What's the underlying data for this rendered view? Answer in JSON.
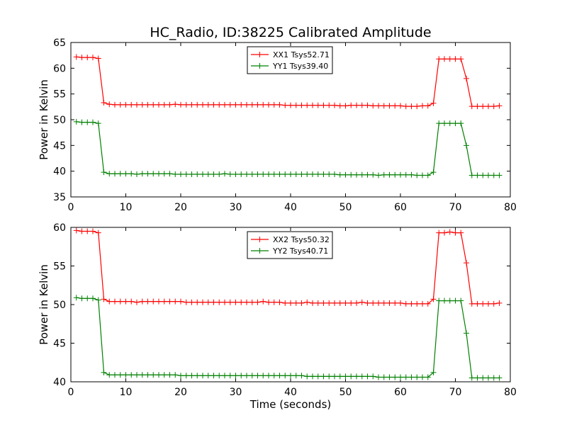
{
  "title": "HC_Radio, ID:38225 Calibrated Amplitude",
  "chart_data": [
    {
      "type": "line",
      "ylabel": "Power in Kelvin",
      "xlabel": "",
      "xlim": [
        0,
        80
      ],
      "ylim": [
        35,
        65
      ],
      "xticks": [
        0,
        10,
        20,
        30,
        40,
        50,
        60,
        70,
        80
      ],
      "yticks": [
        35,
        40,
        45,
        50,
        55,
        60,
        65
      ],
      "legend": "top-center",
      "series": [
        {
          "name": "XX1 Tsys52.71",
          "color": "#ff0000",
          "x": [
            1,
            2,
            3,
            4,
            5,
            6,
            7,
            8,
            9,
            10,
            11,
            12,
            13,
            14,
            15,
            16,
            17,
            18,
            19,
            20,
            21,
            22,
            23,
            24,
            25,
            26,
            27,
            28,
            29,
            30,
            31,
            32,
            33,
            34,
            35,
            36,
            37,
            38,
            39,
            40,
            41,
            42,
            43,
            44,
            45,
            46,
            47,
            48,
            49,
            50,
            51,
            52,
            53,
            54,
            55,
            56,
            57,
            58,
            59,
            60,
            61,
            62,
            63,
            64,
            65,
            66,
            67,
            68,
            69,
            70,
            71,
            72,
            73,
            74,
            75,
            76,
            77,
            78
          ],
          "y": [
            62.2,
            62.1,
            62.1,
            62.1,
            61.9,
            53.3,
            53.0,
            52.9,
            52.9,
            52.9,
            52.9,
            52.9,
            52.9,
            52.9,
            52.9,
            52.9,
            52.9,
            52.9,
            53.0,
            52.9,
            52.9,
            52.9,
            52.9,
            52.9,
            52.9,
            52.9,
            52.9,
            52.9,
            52.9,
            52.9,
            52.9,
            52.9,
            52.9,
            52.9,
            52.9,
            52.9,
            52.9,
            52.9,
            52.8,
            52.8,
            52.8,
            52.8,
            52.8,
            52.8,
            52.8,
            52.8,
            52.8,
            52.8,
            52.7,
            52.7,
            52.8,
            52.8,
            52.8,
            52.8,
            52.7,
            52.7,
            52.7,
            52.7,
            52.7,
            52.7,
            52.6,
            52.6,
            52.6,
            52.7,
            52.7,
            53.2,
            61.8,
            61.8,
            61.8,
            61.8,
            61.8,
            58.0,
            52.6,
            52.6,
            52.6,
            52.6,
            52.6,
            52.7
          ]
        },
        {
          "name": "YY1 Tsys39.40",
          "color": "#008000",
          "x": [
            1,
            2,
            3,
            4,
            5,
            6,
            7,
            8,
            9,
            10,
            11,
            12,
            13,
            14,
            15,
            16,
            17,
            18,
            19,
            20,
            21,
            22,
            23,
            24,
            25,
            26,
            27,
            28,
            29,
            30,
            31,
            32,
            33,
            34,
            35,
            36,
            37,
            38,
            39,
            40,
            41,
            42,
            43,
            44,
            45,
            46,
            47,
            48,
            49,
            50,
            51,
            52,
            53,
            54,
            55,
            56,
            57,
            58,
            59,
            60,
            61,
            62,
            63,
            64,
            65,
            66,
            67,
            68,
            69,
            70,
            71,
            72,
            73,
            74,
            75,
            76,
            77,
            78
          ],
          "y": [
            49.6,
            49.5,
            49.5,
            49.5,
            49.3,
            39.8,
            39.5,
            39.5,
            39.5,
            39.5,
            39.5,
            39.4,
            39.5,
            39.5,
            39.5,
            39.5,
            39.5,
            39.5,
            39.4,
            39.4,
            39.4,
            39.4,
            39.4,
            39.4,
            39.4,
            39.4,
            39.4,
            39.5,
            39.4,
            39.4,
            39.4,
            39.4,
            39.4,
            39.4,
            39.4,
            39.4,
            39.4,
            39.4,
            39.4,
            39.4,
            39.4,
            39.4,
            39.4,
            39.4,
            39.4,
            39.4,
            39.4,
            39.4,
            39.3,
            39.3,
            39.3,
            39.3,
            39.3,
            39.3,
            39.3,
            39.2,
            39.3,
            39.3,
            39.3,
            39.3,
            39.3,
            39.3,
            39.2,
            39.2,
            39.2,
            39.8,
            49.3,
            49.3,
            49.3,
            49.3,
            49.3,
            45.0,
            39.2,
            39.2,
            39.2,
            39.2,
            39.2,
            39.2
          ]
        }
      ]
    },
    {
      "type": "line",
      "ylabel": "Power in Kelvin",
      "xlabel": "Time (seconds)",
      "xlim": [
        0,
        80
      ],
      "ylim": [
        40,
        60
      ],
      "xticks": [
        0,
        10,
        20,
        30,
        40,
        50,
        60,
        70,
        80
      ],
      "yticks": [
        40,
        45,
        50,
        55,
        60
      ],
      "legend": "top-center",
      "series": [
        {
          "name": "XX2 Tsys50.32",
          "color": "#ff0000",
          "x": [
            1,
            2,
            3,
            4,
            5,
            6,
            7,
            8,
            9,
            10,
            11,
            12,
            13,
            14,
            15,
            16,
            17,
            18,
            19,
            20,
            21,
            22,
            23,
            24,
            25,
            26,
            27,
            28,
            29,
            30,
            31,
            32,
            33,
            34,
            35,
            36,
            37,
            38,
            39,
            40,
            41,
            42,
            43,
            44,
            45,
            46,
            47,
            48,
            49,
            50,
            51,
            52,
            53,
            54,
            55,
            56,
            57,
            58,
            59,
            60,
            61,
            62,
            63,
            64,
            65,
            66,
            67,
            68,
            69,
            70,
            71,
            72,
            73,
            74,
            75,
            76,
            77,
            78
          ],
          "y": [
            59.6,
            59.5,
            59.5,
            59.5,
            59.3,
            50.7,
            50.4,
            50.4,
            50.4,
            50.4,
            50.4,
            50.3,
            50.4,
            50.4,
            50.4,
            50.4,
            50.4,
            50.4,
            50.4,
            50.4,
            50.3,
            50.3,
            50.3,
            50.3,
            50.3,
            50.3,
            50.3,
            50.3,
            50.3,
            50.3,
            50.3,
            50.3,
            50.3,
            50.3,
            50.4,
            50.3,
            50.3,
            50.3,
            50.2,
            50.2,
            50.2,
            50.2,
            50.3,
            50.2,
            50.2,
            50.2,
            50.2,
            50.2,
            50.2,
            50.2,
            50.2,
            50.2,
            50.3,
            50.2,
            50.2,
            50.2,
            50.2,
            50.2,
            50.2,
            50.2,
            50.1,
            50.1,
            50.1,
            50.1,
            50.1,
            50.7,
            59.3,
            59.3,
            59.4,
            59.3,
            59.3,
            55.4,
            50.1,
            50.1,
            50.1,
            50.1,
            50.1,
            50.2
          ]
        },
        {
          "name": "YY2 Tsys40.71",
          "color": "#008000",
          "x": [
            1,
            2,
            3,
            4,
            5,
            6,
            7,
            8,
            9,
            10,
            11,
            12,
            13,
            14,
            15,
            16,
            17,
            18,
            19,
            20,
            21,
            22,
            23,
            24,
            25,
            26,
            27,
            28,
            29,
            30,
            31,
            32,
            33,
            34,
            35,
            36,
            37,
            38,
            39,
            40,
            41,
            42,
            43,
            44,
            45,
            46,
            47,
            48,
            49,
            50,
            51,
            52,
            53,
            54,
            55,
            56,
            57,
            58,
            59,
            60,
            61,
            62,
            63,
            64,
            65,
            66,
            67,
            68,
            69,
            70,
            71,
            72,
            73,
            74,
            75,
            76,
            77,
            78
          ],
          "y": [
            50.9,
            50.8,
            50.8,
            50.8,
            50.6,
            41.2,
            40.9,
            40.9,
            40.9,
            40.9,
            40.9,
            40.9,
            40.9,
            40.9,
            40.9,
            40.9,
            40.9,
            40.9,
            40.9,
            40.8,
            40.8,
            40.8,
            40.8,
            40.8,
            40.8,
            40.8,
            40.8,
            40.8,
            40.8,
            40.8,
            40.8,
            40.8,
            40.8,
            40.8,
            40.8,
            40.8,
            40.8,
            40.8,
            40.8,
            40.8,
            40.8,
            40.8,
            40.7,
            40.7,
            40.7,
            40.7,
            40.7,
            40.7,
            40.7,
            40.7,
            40.7,
            40.7,
            40.7,
            40.7,
            40.7,
            40.6,
            40.6,
            40.6,
            40.6,
            40.6,
            40.6,
            40.6,
            40.6,
            40.6,
            40.6,
            41.2,
            50.5,
            50.5,
            50.5,
            50.5,
            50.5,
            46.3,
            40.5,
            40.5,
            40.5,
            40.5,
            40.5,
            40.5
          ]
        }
      ]
    }
  ]
}
